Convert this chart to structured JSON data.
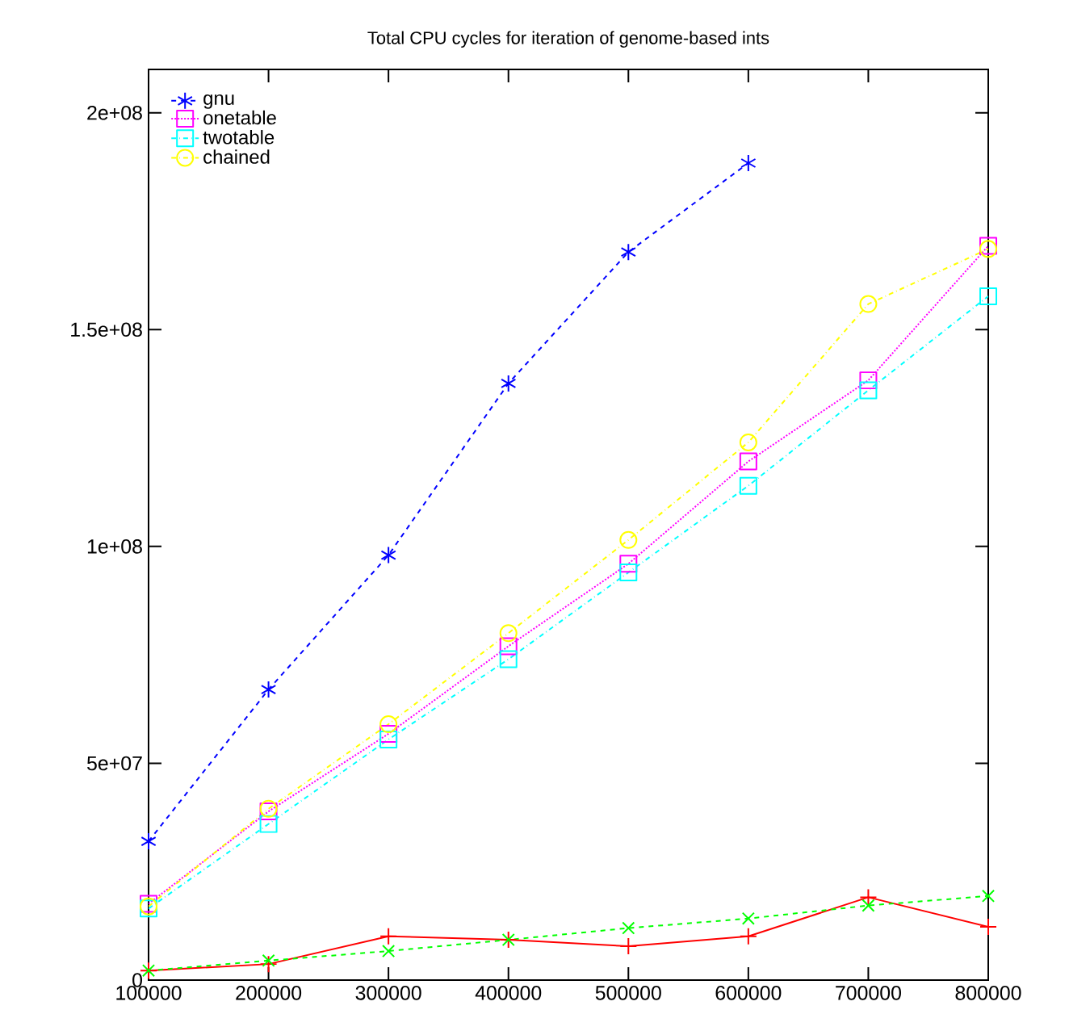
{
  "chart_data": {
    "type": "line",
    "title": "Total CPU cycles for iteration of genome-based ints",
    "x": [
      100000,
      200000,
      300000,
      400000,
      500000,
      600000,
      700000,
      800000
    ],
    "series": [
      {
        "color": "#ff0000",
        "marker": "plus",
        "line_style": "solid",
        "values": [
          2200000,
          3700000,
          10100000,
          9300000,
          7800000,
          10100000,
          19100000,
          12300000
        ]
      },
      {
        "color": "#00ff00",
        "marker": "x",
        "line_style": "dashed",
        "values": [
          2200000,
          4500000,
          6700000,
          9300000,
          12000000,
          14200000,
          17200000,
          19400000
        ]
      },
      {
        "name": "gnu",
        "color": "#0000ff",
        "marker": "cross",
        "line_style": "dashed",
        "values": [
          32000000,
          67000000,
          98000000,
          137600000,
          167900000,
          188400000,
          null,
          null
        ]
      },
      {
        "name": "onetable",
        "color": "#ff00ff",
        "marker": "square",
        "line_style": "dotted",
        "values": [
          17600000,
          38900000,
          56800000,
          77000000,
          96000000,
          119600000,
          138300000,
          169300000
        ]
      },
      {
        "name": "twotable",
        "color": "#00ffff",
        "marker": "square",
        "line_style": "dashdot",
        "values": [
          16500000,
          36000000,
          55500000,
          74000000,
          94000000,
          114000000,
          136000000,
          157700000
        ]
      },
      {
        "name": "chained",
        "color": "#ffff00",
        "marker": "circle",
        "line_style": "dashdot",
        "values": [
          17000000,
          39500000,
          59000000,
          80000000,
          101500000,
          124000000,
          155900000,
          168600000
        ]
      }
    ],
    "xlim": [
      100000,
      800000
    ],
    "ylim": [
      0,
      210000000
    ],
    "xticks": [
      100000,
      200000,
      300000,
      400000,
      500000,
      600000,
      700000,
      800000
    ],
    "yticks": [
      {
        "value": 0,
        "label": "0"
      },
      {
        "value": 50000000,
        "label": "5e+07"
      },
      {
        "value": 100000000,
        "label": "1e+08"
      },
      {
        "value": 150000000,
        "label": "1.5e+08"
      },
      {
        "value": 200000000,
        "label": "2e+08"
      }
    ],
    "legend": "top left",
    "grid": false
  }
}
